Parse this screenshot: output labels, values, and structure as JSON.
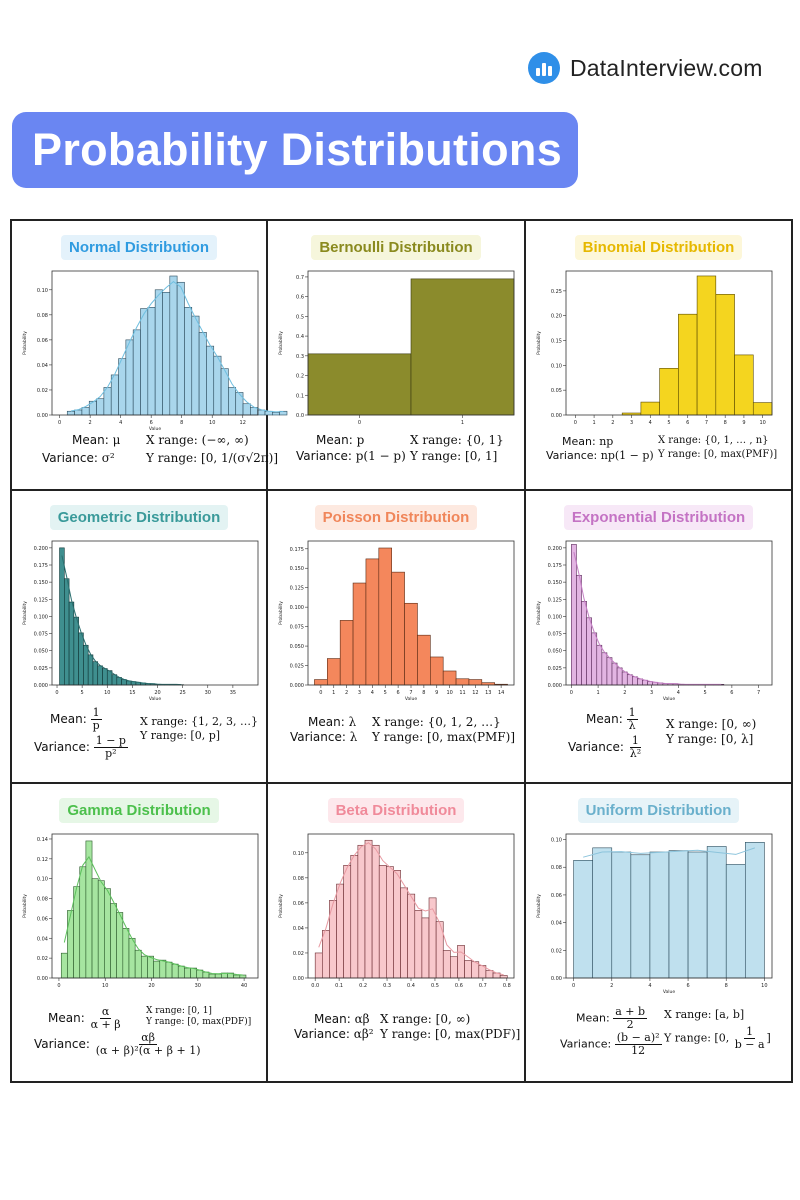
{
  "brand": {
    "name": "DataInterview.com",
    "logo_icon": "bar-chart-logo-icon"
  },
  "header": {
    "title": "Probability Distributions",
    "banner_color": "#6a86f2"
  },
  "panels": [
    {
      "id": "normal",
      "title": "Normal Distribution",
      "title_color": "#2f9be0",
      "title_bg": "#e4f2fb",
      "mean_label": "Mean:",
      "mean": "μ",
      "var_label": "Variance:",
      "variance": "σ²",
      "xrange_label": "X range:",
      "xrange": "(−∞, ∞)",
      "yrange_label": "Y range:",
      "yrange": "[0, 1/(σ√2π)]",
      "chart_data": {
        "type": "bar",
        "xlabel": "Value",
        "ylabel": "Probability",
        "xlim": [
          -0.5,
          13
        ],
        "ylim": [
          0,
          0.115
        ],
        "xticks": [
          0,
          2,
          4,
          6,
          8,
          10,
          12
        ],
        "yticks": [
          0,
          0.02,
          0.04,
          0.06,
          0.08,
          0.1
        ],
        "ytick_labels": [
          "0.00",
          "0.02",
          "0.04",
          "0.06",
          "0.08",
          "0.10"
        ],
        "bin_start": 0.5,
        "bin_width": 0.48,
        "values": [
          0.003,
          0.004,
          0.006,
          0.011,
          0.013,
          0.022,
          0.032,
          0.045,
          0.06,
          0.068,
          0.085,
          0.086,
          0.1,
          0.098,
          0.111,
          0.106,
          0.086,
          0.079,
          0.066,
          0.055,
          0.047,
          0.037,
          0.022,
          0.018,
          0.009,
          0.006,
          0.004,
          0.003,
          0.002,
          0.003
        ],
        "fill": "#a9d6ec",
        "edge": "#2b4b5c",
        "kde": true,
        "kde_color": "#6fbfe0"
      }
    },
    {
      "id": "bernoulli",
      "title": "Bernoulli Distribution",
      "title_color": "#8a8a1e",
      "title_bg": "#f6f6dc",
      "mean_label": "Mean:",
      "mean": "p",
      "var_label": "Variance:",
      "variance": "p(1 − p)",
      "xrange_label": "X range:",
      "xrange": "{0, 1}",
      "yrange_label": "Y range:",
      "yrange": "[0, 1]",
      "chart_data": {
        "type": "bar",
        "xlabel": "",
        "ylabel": "Probability",
        "xlim": [
          -0.5,
          1.5
        ],
        "ylim": [
          0,
          0.73
        ],
        "xticks": [
          0,
          1
        ],
        "yticks": [
          0,
          0.1,
          0.2,
          0.3,
          0.4,
          0.5,
          0.6,
          0.7
        ],
        "ytick_labels": [
          "0.0",
          "0.1",
          "0.2",
          "0.3",
          "0.4",
          "0.5",
          "0.6",
          "0.7"
        ],
        "bin_start": -0.5,
        "bin_width": 1.0,
        "values": [
          0.31,
          0.69
        ],
        "fill": "#8b8b2c",
        "edge": "#3a3a10",
        "kde": false
      }
    },
    {
      "id": "binomial",
      "title": "Binomial Distribution",
      "title_color": "#e6b800",
      "title_bg": "#fdf7d9",
      "mean_label": "Mean:",
      "mean": "np",
      "var_label": "Variance:",
      "variance": "np(1 − p)",
      "xrange_label": "X range:",
      "xrange": "{0, 1, … , n}",
      "yrange_label": "Y range:",
      "yrange": "[0, max(PMF)]",
      "chart_data": {
        "type": "bar",
        "xlabel": "",
        "ylabel": "Probability",
        "xlim": [
          -0.5,
          10.5
        ],
        "ylim": [
          0,
          0.29
        ],
        "xticks": [
          0,
          1,
          2,
          3,
          4,
          5,
          6,
          7,
          8,
          9,
          10
        ],
        "yticks": [
          0,
          0.05,
          0.1,
          0.15,
          0.2,
          0.25
        ],
        "ytick_labels": [
          "0.00",
          "0.05",
          "0.10",
          "0.15",
          "0.20",
          "0.25"
        ],
        "bin_start": 2.5,
        "bin_width": 1.0,
        "values": [
          0.004,
          0.026,
          0.094,
          0.203,
          0.28,
          0.243,
          0.121,
          0.025
        ],
        "fill": "#f4d51f",
        "edge": "#5a4a00",
        "kde": false
      }
    },
    {
      "id": "geometric",
      "title": "Geometric Distribution",
      "title_color": "#3a9a9a",
      "title_bg": "#e3f3f3",
      "mean_label": "Mean:",
      "mean_num": "1",
      "mean_den": "p",
      "var_label": "Variance:",
      "var_num": "1 − p",
      "var_den": "p²",
      "xrange_label": "X range:",
      "xrange": "{1, 2, 3, …}",
      "yrange_label": "Y range:",
      "yrange": "[0, p]",
      "chart_data": {
        "type": "bar",
        "xlabel": "Value",
        "ylabel": "Probability",
        "xlim": [
          -1,
          40
        ],
        "ylim": [
          0,
          0.21
        ],
        "xticks": [
          0,
          5,
          10,
          15,
          20,
          25,
          30,
          35
        ],
        "yticks": [
          0,
          0.025,
          0.05,
          0.075,
          0.1,
          0.125,
          0.15,
          0.175,
          0.2
        ],
        "ytick_labels": [
          "0.000",
          "0.025",
          "0.050",
          "0.075",
          "0.100",
          "0.125",
          "0.150",
          "0.175",
          "0.200"
        ],
        "bin_start": 0.5,
        "bin_width": 0.95,
        "values": [
          0.2,
          0.155,
          0.121,
          0.099,
          0.076,
          0.058,
          0.044,
          0.034,
          0.028,
          0.024,
          0.021,
          0.015,
          0.011,
          0.008,
          0.006,
          0.005,
          0.004,
          0.003,
          0.002,
          0.002,
          0.001,
          0.001,
          0.001,
          0.001,
          0.001,
          0.0005
        ],
        "fill": "#3f8f8f",
        "edge": "#0f3535",
        "kde": true,
        "kde_color": "#2a6e6e"
      }
    },
    {
      "id": "poisson",
      "title": "Poisson Distribution",
      "title_color": "#f0865a",
      "title_bg": "#fde9e0",
      "mean_label": "Mean:",
      "mean": "λ",
      "var_label": "Variance:",
      "variance": "λ",
      "xrange_label": "X range:",
      "xrange": "{0, 1, 2, …}",
      "yrange_label": "Y range:",
      "yrange": "[0, max(PMF)]",
      "chart_data": {
        "type": "bar",
        "xlabel": "Value",
        "ylabel": "Probability",
        "xlim": [
          -1,
          15
        ],
        "ylim": [
          0,
          0.185
        ],
        "xticks": [
          0,
          1,
          2,
          3,
          4,
          5,
          6,
          7,
          8,
          9,
          10,
          11,
          12,
          13,
          14
        ],
        "yticks": [
          0,
          0.025,
          0.05,
          0.075,
          0.1,
          0.125,
          0.15,
          0.175
        ],
        "ytick_labels": [
          "0.000",
          "0.025",
          "0.050",
          "0.075",
          "0.100",
          "0.125",
          "0.150",
          "0.175"
        ],
        "bin_start": -0.5,
        "bin_width": 1.0,
        "values": [
          0.007,
          0.034,
          0.083,
          0.131,
          0.162,
          0.176,
          0.145,
          0.105,
          0.064,
          0.036,
          0.018,
          0.008,
          0.007,
          0.003,
          0.001
        ],
        "fill": "#f4875c",
        "edge": "#5a2a14",
        "kde": false
      }
    },
    {
      "id": "exponential",
      "title": "Exponential Distribution",
      "title_color": "#c473c4",
      "title_bg": "#f7e8f7",
      "mean_label": "Mean:",
      "mean_num": "1",
      "mean_den": "λ",
      "var_label": "Variance:",
      "var_num": "1",
      "var_den": "λ²",
      "xrange_label": "X range:",
      "xrange": "[0, ∞)",
      "yrange_label": "Y range:",
      "yrange": "[0, λ]",
      "chart_data": {
        "type": "bar",
        "xlabel": "Value",
        "ylabel": "Probability",
        "xlim": [
          -0.2,
          7.5
        ],
        "ylim": [
          0,
          0.21
        ],
        "xticks": [
          0,
          1,
          2,
          3,
          4,
          5,
          6,
          7
        ],
        "yticks": [
          0,
          0.025,
          0.05,
          0.075,
          0.1,
          0.125,
          0.15,
          0.175,
          0.2
        ],
        "ytick_labels": [
          "0.000",
          "0.025",
          "0.050",
          "0.075",
          "0.100",
          "0.125",
          "0.150",
          "0.175",
          "0.200"
        ],
        "bin_start": 0.0,
        "bin_width": 0.19,
        "values": [
          0.205,
          0.16,
          0.122,
          0.098,
          0.076,
          0.058,
          0.047,
          0.04,
          0.032,
          0.025,
          0.019,
          0.015,
          0.012,
          0.009,
          0.007,
          0.005,
          0.004,
          0.003,
          0.002,
          0.002,
          0.002,
          0.001,
          0.001,
          0.001,
          0.001,
          0.001,
          0.001,
          0.001,
          0.001,
          0.001
        ],
        "fill": "#e2b4e2",
        "edge": "#5a2a5a",
        "kde": true,
        "kde_color": "#c47ec4"
      }
    },
    {
      "id": "gamma",
      "title": "Gamma Distribution",
      "title_color": "#4cc04c",
      "title_bg": "#e6f7e6",
      "mean_label": "Mean:",
      "mean_num": "α",
      "mean_den": "α + β",
      "var_label": "Variance:",
      "var_num": "αβ",
      "var_den": "(α + β)²(α + β + 1)",
      "xrange_label": "X range:",
      "xrange": "[0, 1]",
      "yrange_label": "Y range:",
      "yrange": "[0, max(PDF)]",
      "chart_data": {
        "type": "bar",
        "xlabel": "",
        "ylabel": "Probability",
        "xlim": [
          -1.5,
          43
        ],
        "ylim": [
          0,
          0.145
        ],
        "xticks": [
          0,
          10,
          20,
          30,
          40
        ],
        "yticks": [
          0,
          0.02,
          0.04,
          0.06,
          0.08,
          0.1,
          0.12,
          0.14
        ],
        "ytick_labels": [
          "0.00",
          "0.02",
          "0.04",
          "0.06",
          "0.08",
          "0.10",
          "0.12",
          "0.14"
        ],
        "bin_start": 0.5,
        "bin_width": 1.33,
        "values": [
          0.025,
          0.068,
          0.092,
          0.112,
          0.138,
          0.1,
          0.098,
          0.09,
          0.075,
          0.066,
          0.05,
          0.04,
          0.028,
          0.022,
          0.022,
          0.017,
          0.018,
          0.016,
          0.014,
          0.012,
          0.01,
          0.01,
          0.008,
          0.006,
          0.004,
          0.004,
          0.005,
          0.005,
          0.003,
          0.003
        ],
        "fill": "#a6e5a0",
        "edge": "#2a5a2a",
        "kde": true,
        "kde_color": "#5cc05c"
      }
    },
    {
      "id": "beta",
      "title": "Beta Distribution",
      "title_color": "#f08a9a",
      "title_bg": "#fde8ec",
      "mean_label": "Mean:",
      "mean": "αβ",
      "var_label": "Variance:",
      "variance": "αβ²",
      "xrange_label": "X range:",
      "xrange": "[0, ∞)",
      "yrange_label": "Y range:",
      "yrange": "[0, max(PDF)]",
      "chart_data": {
        "type": "bar",
        "xlabel": "",
        "ylabel": "Probability",
        "xlim": [
          -0.03,
          0.83
        ],
        "ylim": [
          0,
          0.115
        ],
        "xticks": [
          0,
          0.1,
          0.2,
          0.3,
          0.4,
          0.5,
          0.6,
          0.7,
          0.8
        ],
        "yticks": [
          0,
          0.02,
          0.04,
          0.06,
          0.08,
          0.1
        ],
        "ytick_labels": [
          "0.00",
          "0.02",
          "0.04",
          "0.06",
          "0.08",
          "0.10"
        ],
        "xtick_labels": [
          "0.0",
          "0.1",
          "0.2",
          "0.3",
          "0.4",
          "0.5",
          "0.6",
          "0.7",
          "0.8"
        ],
        "bin_start": 0.0,
        "bin_width": 0.0297,
        "values": [
          0.02,
          0.038,
          0.062,
          0.075,
          0.09,
          0.098,
          0.106,
          0.11,
          0.106,
          0.09,
          0.089,
          0.086,
          0.072,
          0.067,
          0.054,
          0.048,
          0.064,
          0.045,
          0.022,
          0.017,
          0.026,
          0.014,
          0.013,
          0.01,
          0.006,
          0.004,
          0.002
        ],
        "fill": "#f8c8cc",
        "edge": "#6a2a30",
        "kde": true,
        "kde_color": "#e89aa2"
      }
    },
    {
      "id": "uniform",
      "title": "Uniform Distribution",
      "title_color": "#6ab0cc",
      "title_bg": "#e6f3f8",
      "mean_label": "Mean:",
      "mean_num": "a + b",
      "mean_den": "2",
      "var_label": "Variance:",
      "var_num": "(b − a)²",
      "var_den": "12",
      "xrange_label": "X range:",
      "xrange": "[a, b]",
      "yrange_label": "Y range:",
      "yrange_prefix": "[0,",
      "yrange_num": "1",
      "yrange_den": "b − a",
      "chart_data": {
        "type": "bar",
        "xlabel": "Value",
        "ylabel": "Probability",
        "xlim": [
          -0.4,
          10.4
        ],
        "ylim": [
          0,
          0.104
        ],
        "xticks": [
          0,
          2,
          4,
          6,
          8,
          10
        ],
        "yticks": [
          0,
          0.02,
          0.04,
          0.06,
          0.08,
          0.1
        ],
        "ytick_labels": [
          "0.00",
          "0.02",
          "0.04",
          "0.06",
          "0.08",
          "0.10"
        ],
        "bin_start": 0.0,
        "bin_width": 1.0,
        "values": [
          0.085,
          0.094,
          0.091,
          0.089,
          0.091,
          0.092,
          0.091,
          0.095,
          0.082,
          0.098
        ],
        "fill": "#bfe0ee",
        "edge": "#2a4a5a",
        "kde": true,
        "kde_color": "#8cc4dc"
      }
    }
  ]
}
